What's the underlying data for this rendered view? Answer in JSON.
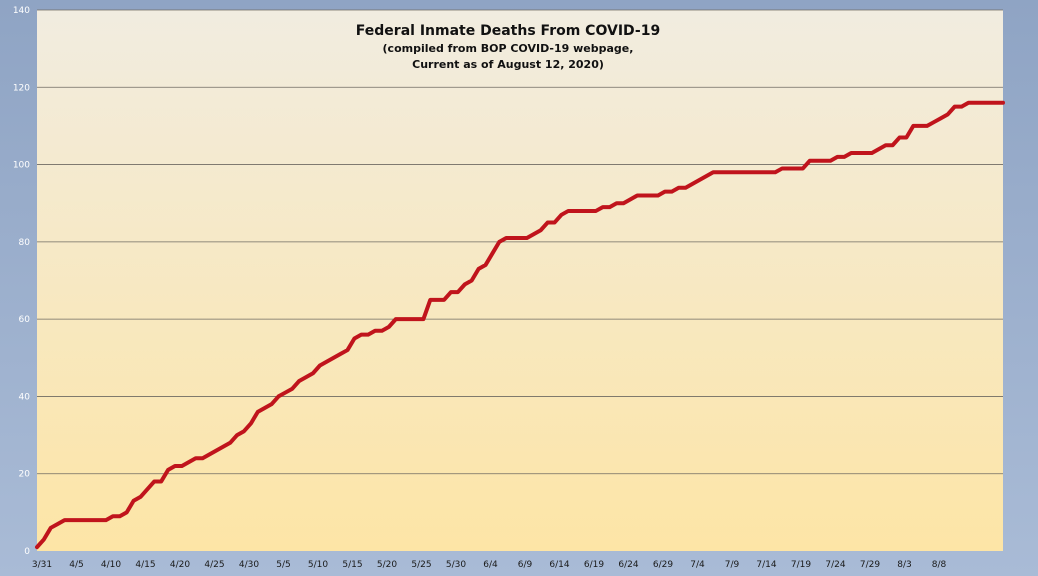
{
  "chart_data": {
    "type": "line",
    "title": "Federal Inmate Deaths From COVID-19",
    "subtitle_lines": [
      "(compiled from BOP COVID-19 webpage,",
      "Current as of August 12, 2020)"
    ],
    "ylim": [
      0,
      140
    ],
    "yticks": [
      0,
      20,
      40,
      60,
      80,
      100,
      120,
      140
    ],
    "x_tick_labels": [
      "3/31",
      "4/5",
      "4/10",
      "4/15",
      "4/20",
      "4/25",
      "4/30",
      "5/5",
      "5/10",
      "5/15",
      "5/20",
      "5/25",
      "5/30",
      "6/4",
      "6/9",
      "6/14",
      "6/19",
      "6/24",
      "6/29",
      "7/4",
      "7/9",
      "7/14",
      "7/19",
      "7/24",
      "7/29",
      "8/3",
      "8/8"
    ],
    "grid": true,
    "colors": {
      "line": "#c0141c",
      "plot_top": "#f1ece0",
      "plot_bottom": "#fde5a6",
      "frame": "#8fa4c4"
    },
    "series": [
      {
        "values": [
          1,
          3,
          6,
          7,
          8,
          8,
          8,
          8,
          8,
          8,
          8,
          9,
          9,
          10,
          13,
          14,
          16,
          18,
          18,
          21,
          22,
          22,
          23,
          24,
          24,
          25,
          26,
          27,
          28,
          30,
          31,
          33,
          36,
          37,
          38,
          40,
          41,
          42,
          44,
          45,
          46,
          48,
          49,
          50,
          51,
          52,
          55,
          56,
          56,
          57,
          57,
          58,
          60,
          60,
          60,
          60,
          60,
          65,
          65,
          65,
          67,
          67,
          69,
          70,
          73,
          74,
          77,
          80,
          81,
          81,
          81,
          81,
          82,
          83,
          85,
          85,
          87,
          88,
          88,
          88,
          88,
          88,
          89,
          89,
          90,
          90,
          91,
          92,
          92,
          92,
          92,
          93,
          93,
          94,
          94,
          95,
          96,
          97,
          98,
          98,
          98,
          98,
          98,
          98,
          98,
          98,
          98,
          98,
          99,
          99,
          99,
          99,
          101,
          101,
          101,
          101,
          102,
          102,
          103,
          103,
          103,
          103,
          104,
          105,
          105,
          107,
          107,
          110,
          110,
          110,
          111,
          112,
          113,
          115,
          115,
          116,
          116,
          116,
          116,
          116,
          116
        ]
      }
    ]
  }
}
